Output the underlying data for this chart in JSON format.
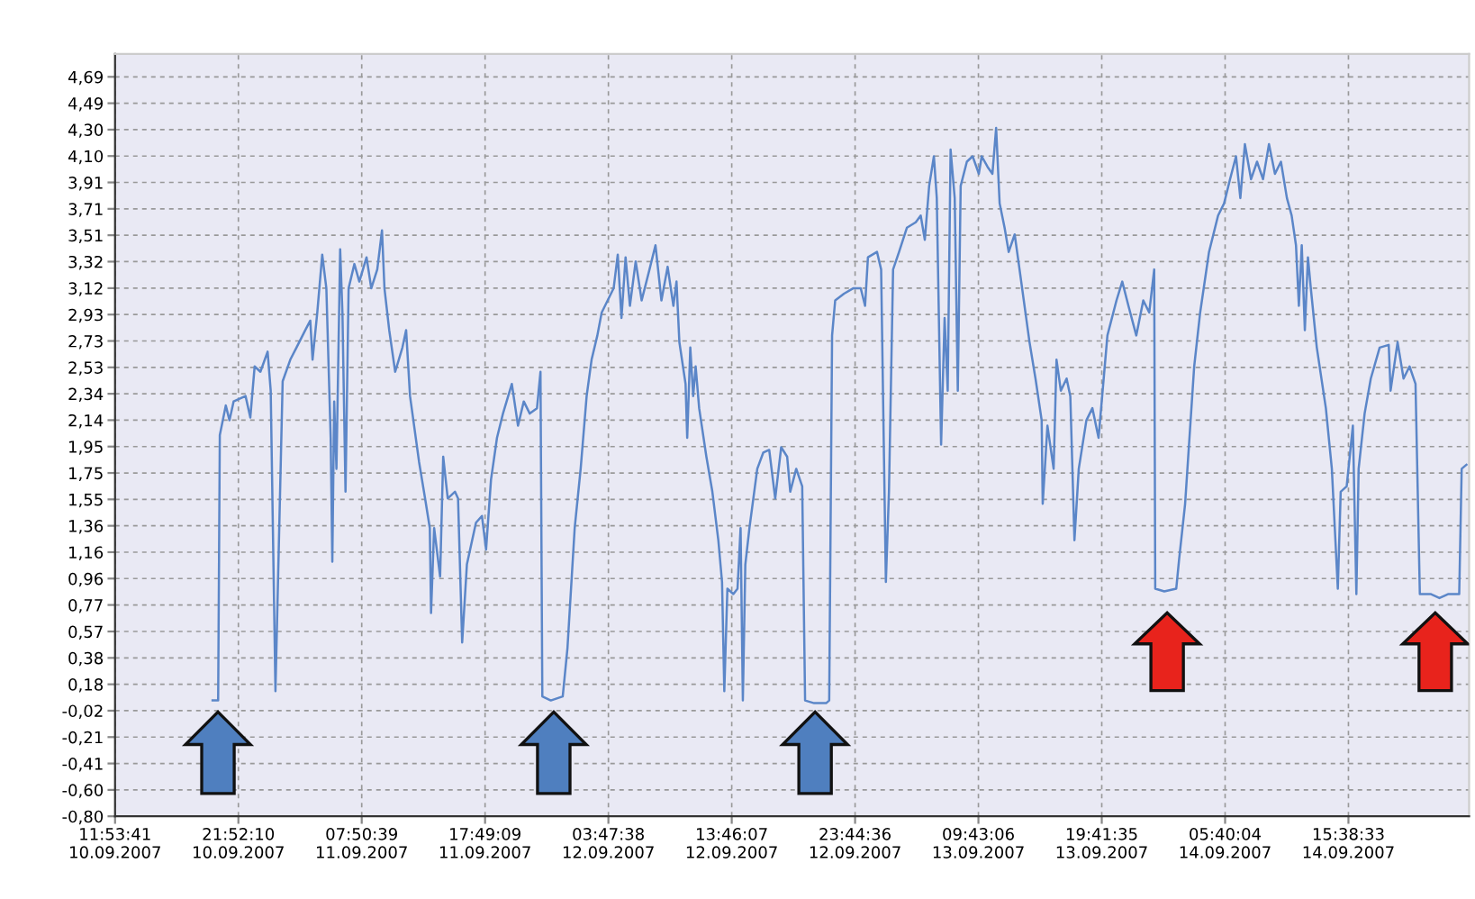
{
  "chart_data": {
    "type": "line",
    "x": [
      "2007-09-10T19:47",
      "2007-09-10T20:14",
      "2007-09-10T20:22",
      "2007-09-10T20:51",
      "2007-09-10T21:09",
      "2007-09-10T21:29",
      "2007-09-10T22:27",
      "2007-09-10T22:50",
      "2007-09-10T23:11",
      "2007-09-10T23:39",
      "2007-09-11T00:14",
      "2007-09-11T00:29",
      "2007-09-11T00:52",
      "2007-09-11T01:27",
      "2007-09-11T02:04",
      "2007-09-11T02:34",
      "2007-09-11T03:17",
      "2007-09-11T03:41",
      "2007-09-11T03:52",
      "2007-09-11T04:15",
      "2007-09-11T04:39",
      "2007-09-11T04:59",
      "2007-09-11T05:20",
      "2007-09-11T05:28",
      "2007-09-11T05:37",
      "2007-09-11T05:48",
      "2007-09-11T06:06",
      "2007-09-11T06:17",
      "2007-09-11T06:32",
      "2007-09-11T06:47",
      "2007-09-11T07:15",
      "2007-09-11T07:39",
      "2007-09-11T08:14",
      "2007-09-11T08:37",
      "2007-09-11T09:06",
      "2007-09-11T09:29",
      "2007-09-11T09:41",
      "2007-09-11T10:04",
      "2007-09-11T10:33",
      "2007-09-11T11:08",
      "2007-09-11T11:26",
      "2007-09-11T11:45",
      "2007-09-11T12:29",
      "2007-09-11T12:58",
      "2007-09-11T13:21",
      "2007-09-11T13:27",
      "2007-09-11T13:42",
      "2007-09-11T14:11",
      "2007-09-11T14:26",
      "2007-09-11T14:48",
      "2007-09-11T15:23",
      "2007-09-11T15:38",
      "2007-09-11T15:58",
      "2007-09-11T16:21",
      "2007-09-11T17:05",
      "2007-09-11T17:34",
      "2007-09-11T17:54",
      "2007-09-11T18:18",
      "2007-09-11T18:47",
      "2007-09-11T19:16",
      "2007-09-11T19:59",
      "2007-09-11T20:29",
      "2007-09-11T20:57",
      "2007-09-11T21:26",
      "2007-09-11T22:01",
      "2007-09-11T22:18",
      "2007-09-11T22:27",
      "2007-09-11T23:08",
      "2007-09-12T00:06",
      "2007-09-12T00:29",
      "2007-09-12T01:04",
      "2007-09-12T01:33",
      "2007-09-12T02:02",
      "2007-09-12T02:26",
      "2007-09-12T02:54",
      "2007-09-12T03:15",
      "2007-09-12T03:44",
      "2007-09-12T04:13",
      "2007-09-12T04:33",
      "2007-09-12T04:51",
      "2007-09-12T05:11",
      "2007-09-12T05:32",
      "2007-09-12T06:00",
      "2007-09-12T06:29",
      "2007-09-12T07:07",
      "2007-09-12T07:36",
      "2007-09-12T08:05",
      "2007-09-12T08:35",
      "2007-09-12T09:03",
      "2007-09-12T09:18",
      "2007-09-12T09:32",
      "2007-09-12T10:02",
      "2007-09-12T10:10",
      "2007-09-12T10:25",
      "2007-09-12T10:39",
      "2007-09-12T10:51",
      "2007-09-12T11:08",
      "2007-09-12T11:43",
      "2007-09-12T12:12",
      "2007-09-12T12:41",
      "2007-09-12T12:59",
      "2007-09-12T13:10",
      "2007-09-12T13:25",
      "2007-09-12T13:54",
      "2007-09-12T14:14",
      "2007-09-12T14:29",
      "2007-09-12T14:40",
      "2007-09-12T14:52",
      "2007-09-12T15:12",
      "2007-09-12T15:50",
      "2007-09-12T16:19",
      "2007-09-12T16:48",
      "2007-09-12T17:17",
      "2007-09-12T17:46",
      "2007-09-12T18:15",
      "2007-09-12T18:30",
      "2007-09-12T18:59",
      "2007-09-12T19:28",
      "2007-09-12T19:42",
      "2007-09-12T20:26",
      "2007-09-12T21:09",
      "2007-09-12T21:24",
      "2007-09-12T21:39",
      "2007-09-12T21:53",
      "2007-09-12T22:08",
      "2007-09-12T22:51",
      "2007-09-12T23:35",
      "2007-09-13T00:12",
      "2007-09-13T00:33",
      "2007-09-13T00:47",
      "2007-09-13T01:31",
      "2007-09-13T01:51",
      "2007-09-13T02:14",
      "2007-09-13T02:29",
      "2007-09-13T02:49",
      "2007-09-13T03:18",
      "2007-09-13T03:56",
      "2007-09-13T04:39",
      "2007-09-13T05:03",
      "2007-09-13T05:23",
      "2007-09-13T05:44",
      "2007-09-13T06:07",
      "2007-09-13T06:21",
      "2007-09-13T06:42",
      "2007-09-13T06:59",
      "2007-09-13T07:14",
      "2007-09-13T07:28",
      "2007-09-13T07:48",
      "2007-09-13T08:03",
      "2007-09-13T08:17",
      "2007-09-13T08:47",
      "2007-09-13T09:15",
      "2007-09-13T09:45",
      "2007-09-13T09:59",
      "2007-09-13T10:28",
      "2007-09-13T10:51",
      "2007-09-13T11:09",
      "2007-09-13T11:26",
      "2007-09-13T11:50",
      "2007-09-13T12:10",
      "2007-09-13T12:39",
      "2007-09-13T12:59",
      "2007-09-13T13:51",
      "2007-09-13T14:20",
      "2007-09-13T14:50",
      "2007-09-13T14:55",
      "2007-09-13T15:18",
      "2007-09-13T15:48",
      "2007-09-13T16:02",
      "2007-09-13T16:23",
      "2007-09-13T16:51",
      "2007-09-13T17:09",
      "2007-09-13T17:29",
      "2007-09-13T17:50",
      "2007-09-13T18:27",
      "2007-09-13T18:56",
      "2007-09-13T19:26",
      "2007-09-13T20:09",
      "2007-09-13T20:53",
      "2007-09-13T21:21",
      "2007-09-13T21:51",
      "2007-09-13T22:29",
      "2007-09-13T23:03",
      "2007-09-13T23:32",
      "2007-09-13T23:56",
      "2007-09-14T00:01",
      "2007-09-14T00:45",
      "2007-09-14T01:43",
      "2007-09-14T01:57",
      "2007-09-14T02:26",
      "2007-09-14T03:10",
      "2007-09-14T03:39",
      "2007-09-14T04:22",
      "2007-09-14T05:06",
      "2007-09-14T05:35",
      "2007-09-14T06:04",
      "2007-09-14T06:33",
      "2007-09-14T06:54",
      "2007-09-14T07:16",
      "2007-09-14T07:46",
      "2007-09-14T08:15",
      "2007-09-14T08:44",
      "2007-09-14T09:13",
      "2007-09-14T09:42",
      "2007-09-14T10:11",
      "2007-09-14T10:40",
      "2007-09-14T11:03",
      "2007-09-14T11:24",
      "2007-09-14T11:38",
      "2007-09-14T11:52",
      "2007-09-14T12:07",
      "2007-09-14T12:22",
      "2007-09-14T12:36",
      "2007-09-14T13:05",
      "2007-09-14T13:49",
      "2007-09-14T14:18",
      "2007-09-14T14:47",
      "2007-09-14T15:01",
      "2007-09-14T15:30",
      "2007-09-14T16:00",
      "2007-09-14T16:17",
      "2007-09-14T16:28",
      "2007-09-14T16:57",
      "2007-09-14T17:27",
      "2007-09-14T18:10",
      "2007-09-14T18:54",
      "2007-09-14T19:03",
      "2007-09-14T19:37",
      "2007-09-14T20:06",
      "2007-09-14T20:35",
      "2007-09-14T21:04",
      "2007-09-14T21:25",
      "2007-09-14T22:17",
      "2007-09-14T23:00",
      "2007-09-14T23:44",
      "2007-09-15T00:36",
      "2007-09-15T00:48",
      "2007-09-15T01:11"
    ],
    "series": [
      {
        "color": "#5b86c8",
        "values": [
          0.06,
          0.06,
          2.03,
          2.25,
          2.14,
          2.28,
          2.32,
          2.16,
          2.54,
          2.5,
          2.65,
          2.36,
          0.13,
          2.43,
          2.59,
          2.68,
          2.81,
          2.88,
          2.59,
          2.94,
          3.37,
          3.12,
          2.01,
          1.09,
          2.28,
          1.78,
          3.41,
          2.94,
          1.61,
          3.12,
          3.3,
          3.17,
          3.35,
          3.12,
          3.26,
          3.55,
          3.12,
          2.81,
          2.5,
          2.68,
          2.81,
          2.32,
          1.83,
          1.56,
          1.34,
          0.71,
          1.34,
          0.98,
          1.87,
          1.56,
          1.61,
          1.56,
          0.49,
          1.07,
          1.38,
          1.43,
          1.18,
          1.7,
          2.01,
          2.19,
          2.41,
          2.1,
          2.28,
          2.19,
          2.23,
          2.5,
          0.09,
          0.06,
          0.09,
          0.45,
          1.34,
          1.78,
          2.32,
          2.59,
          2.77,
          2.94,
          3.03,
          3.12,
          3.37,
          2.9,
          3.35,
          2.99,
          3.32,
          3.03,
          3.26,
          3.44,
          3.03,
          3.28,
          2.99,
          3.17,
          2.72,
          2.41,
          2.01,
          2.68,
          2.32,
          2.54,
          2.23,
          1.87,
          1.61,
          1.25,
          0.94,
          0.13,
          0.89,
          0.85,
          0.89,
          1.34,
          0.06,
          1.07,
          1.34,
          1.78,
          1.9,
          1.92,
          1.56,
          1.94,
          1.87,
          1.61,
          1.78,
          1.65,
          0.06,
          0.04,
          0.04,
          0.04,
          0.06,
          2.77,
          3.03,
          3.08,
          3.12,
          3.12,
          2.99,
          3.35,
          3.39,
          3.26,
          0.94,
          1.61,
          3.26,
          3.39,
          3.57,
          3.61,
          3.66,
          3.48,
          3.88,
          4.1,
          3.79,
          1.96,
          2.9,
          2.36,
          4.15,
          3.79,
          2.36,
          3.88,
          4.06,
          4.1,
          3.97,
          4.1,
          4.02,
          3.97,
          4.31,
          3.75,
          3.57,
          3.39,
          3.52,
          3.3,
          2.72,
          2.45,
          2.14,
          1.52,
          2.1,
          1.78,
          2.59,
          2.36,
          2.45,
          2.32,
          1.25,
          1.78,
          2.14,
          2.23,
          2.01,
          2.77,
          3.03,
          3.17,
          2.99,
          2.77,
          3.03,
          2.94,
          3.26,
          0.89,
          0.87,
          0.89,
          1.11,
          1.52,
          2.54,
          2.94,
          3.39,
          3.66,
          3.75,
          3.93,
          4.1,
          3.79,
          4.19,
          3.93,
          4.06,
          3.93,
          4.19,
          3.97,
          4.06,
          3.79,
          3.66,
          3.44,
          2.99,
          3.44,
          2.81,
          3.35,
          3.12,
          2.68,
          2.23,
          1.78,
          0.89,
          1.61,
          1.65,
          2.1,
          0.85,
          1.78,
          2.19,
          2.45,
          2.68,
          2.7,
          2.36,
          2.72,
          2.45,
          2.54,
          2.41,
          0.85,
          0.85,
          0.82,
          0.85,
          0.85,
          1.78,
          1.81
        ]
      }
    ],
    "xlim": [
      "2007-09-10T11:53:41",
      "2007-09-15T01:24"
    ],
    "ylim": [
      -0.8,
      4.86
    ],
    "xticks": [
      {
        "value": "2007-09-10T11:53:41",
        "label": "11:53:41\n10.09.2007"
      },
      {
        "value": "2007-09-10T21:52:10",
        "label": "21:52:10\n10.09.2007"
      },
      {
        "value": "2007-09-11T07:50:39",
        "label": "07:50:39\n11.09.2007"
      },
      {
        "value": "2007-09-11T17:49:09",
        "label": "17:49:09\n11.09.2007"
      },
      {
        "value": "2007-09-12T03:47:38",
        "label": "03:47:38\n12.09.2007"
      },
      {
        "value": "2007-09-12T13:46:07",
        "label": "13:46:07\n12.09.2007"
      },
      {
        "value": "2007-09-12T23:44:36",
        "label": "23:44:36\n12.09.2007"
      },
      {
        "value": "2007-09-13T09:43:06",
        "label": "09:43:06\n13.09.2007"
      },
      {
        "value": "2007-09-13T19:41:35",
        "label": "19:41:35\n13.09.2007"
      },
      {
        "value": "2007-09-14T05:40:04",
        "label": "05:40:04\n14.09.2007"
      },
      {
        "value": "2007-09-14T15:38:33",
        "label": "15:38:33\n14.09.2007"
      }
    ],
    "yticks": [
      {
        "value": -0.8,
        "label": "-0,80"
      },
      {
        "value": -0.604,
        "label": "-0,60"
      },
      {
        "value": -0.408,
        "label": "-0,41"
      },
      {
        "value": -0.212,
        "label": "-0,21"
      },
      {
        "value": -0.016,
        "label": "-0,02"
      },
      {
        "value": 0.18,
        "label": "0,18"
      },
      {
        "value": 0.376,
        "label": "0,38"
      },
      {
        "value": 0.572,
        "label": "0,57"
      },
      {
        "value": 0.769,
        "label": "0,77"
      },
      {
        "value": 0.965,
        "label": "0,96"
      },
      {
        "value": 1.161,
        "label": "1,16"
      },
      {
        "value": 1.357,
        "label": "1,36"
      },
      {
        "value": 1.553,
        "label": "1,55"
      },
      {
        "value": 1.749,
        "label": "1,75"
      },
      {
        "value": 1.945,
        "label": "1,95"
      },
      {
        "value": 2.141,
        "label": "2,14"
      },
      {
        "value": 2.337,
        "label": "2,34"
      },
      {
        "value": 2.533,
        "label": "2,53"
      },
      {
        "value": 2.729,
        "label": "2,73"
      },
      {
        "value": 2.925,
        "label": "2,93"
      },
      {
        "value": 3.121,
        "label": "3,12"
      },
      {
        "value": 3.318,
        "label": "3,32"
      },
      {
        "value": 3.514,
        "label": "3,51"
      },
      {
        "value": 3.71,
        "label": "3,71"
      },
      {
        "value": 3.906,
        "label": "3,91"
      },
      {
        "value": 4.102,
        "label": "4,10"
      },
      {
        "value": 4.298,
        "label": "4,30"
      },
      {
        "value": 4.494,
        "label": "4,49"
      },
      {
        "value": 4.69,
        "label": "4,69"
      }
    ],
    "grid": true,
    "line_style": "solid"
  }
}
